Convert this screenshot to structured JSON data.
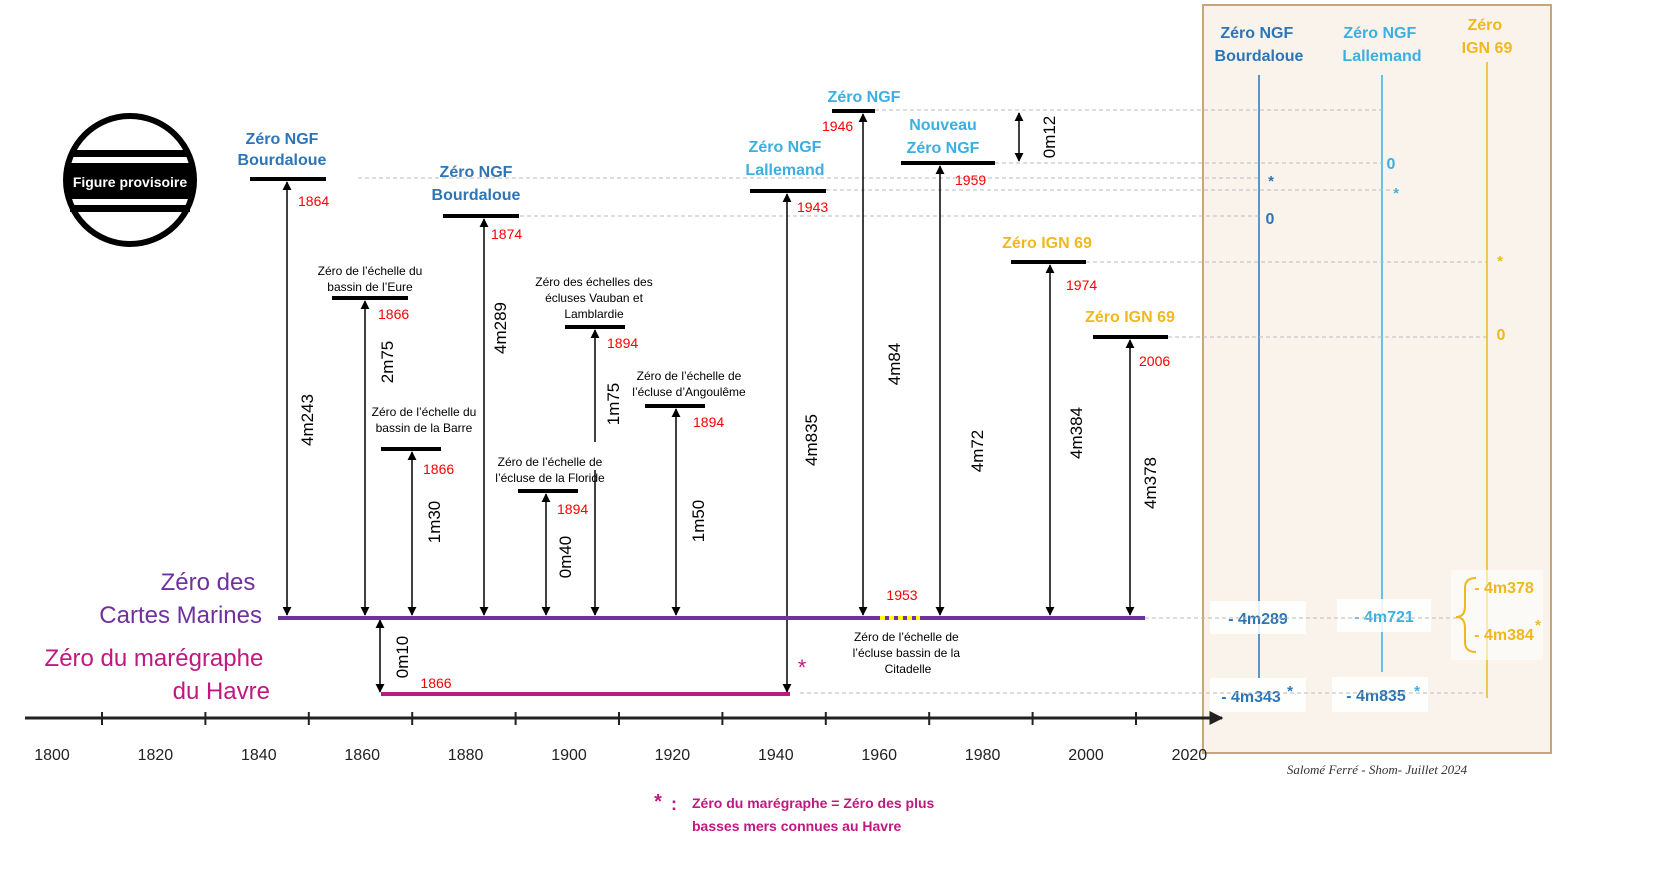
{
  "colors": {
    "ngf_bourdaloue": "#2e75b6",
    "ngf_lallemand": "#3bb0e0",
    "ign69": "#f0b81e",
    "year_red": "#ff0000",
    "cartes_marines": "#7030a0",
    "maregraphe": "#c0187f",
    "panel_bg": "#f9f3ec",
    "panel_border": "#c9a57a"
  },
  "badge": {
    "label": "Figure provisoire"
  },
  "axis": {
    "ticks": [
      "1800",
      "1820",
      "1840",
      "1860",
      "1880",
      "1900",
      "1920",
      "1940",
      "1960",
      "1980",
      "2000",
      "2020"
    ]
  },
  "zeros": [
    {
      "id": "ngf-bourdaloue-1864",
      "title_lines": [
        "Zéro NGF",
        "Bourdaloue"
      ],
      "year": "1864",
      "height": "4m243",
      "color": "blue"
    },
    {
      "id": "eure-1866",
      "title_lines": [
        "Zéro de l’échelle du",
        "bassin de l’Eure"
      ],
      "year": "1866",
      "height": "2m75",
      "color": "black"
    },
    {
      "id": "barre-1866",
      "title_lines": [
        "Zéro de l’échelle du",
        "bassin de la Barre"
      ],
      "year": "1866",
      "height": "1m30",
      "color": "black"
    },
    {
      "id": "ngf-bourdaloue-1874",
      "title_lines": [
        "Zéro NGF",
        "Bourdaloue"
      ],
      "year": "1874",
      "height": "4m289",
      "color": "blue"
    },
    {
      "id": "floride-1894",
      "title_lines": [
        "Zéro de l’échelle de",
        "l’écluse de la Floride"
      ],
      "year": "1894",
      "height": "0m40",
      "color": "black"
    },
    {
      "id": "vauban-1894",
      "title_lines": [
        "Zéro des échelles des",
        "écluses Vauban et",
        "Lamblardie"
      ],
      "year": "1894",
      "height": "1m75",
      "color": "black"
    },
    {
      "id": "angouleme-1894",
      "title_lines": [
        "Zéro de l’échelle de",
        "l’écluse d’Angoulême"
      ],
      "year": "1894",
      "height": "1m50",
      "color": "black"
    },
    {
      "id": "ngf-lallemand-1943",
      "title_lines": [
        "Zéro NGF",
        "Lallemand"
      ],
      "year": "1943",
      "height": "4m835",
      "color": "cyan"
    },
    {
      "id": "ngf-1946",
      "title_lines": [
        "Zéro NGF"
      ],
      "year": "1946",
      "height": "4m84",
      "color": "cyan"
    },
    {
      "id": "nouveau-ngf-1959",
      "title_lines": [
        "Nouveau",
        "Zéro NGF"
      ],
      "year": "1959",
      "height": "4m72",
      "color": "cyan"
    },
    {
      "id": "ign69-1974",
      "title_lines": [
        "Zéro IGN 69"
      ],
      "year": "1974",
      "height": "4m384",
      "color": "gold"
    },
    {
      "id": "ign69-2006",
      "title_lines": [
        "Zéro IGN 69"
      ],
      "year": "2006",
      "height": "4m378",
      "color": "gold"
    }
  ],
  "gap_ngf": {
    "label": "0m12"
  },
  "cartes_marines": {
    "label_lines": [
      "Zéro des",
      "Cartes Marines"
    ]
  },
  "maregraphe": {
    "label_lines": [
      "Zéro du marégraphe",
      "du Havre"
    ],
    "year": "1866",
    "height": "0m10",
    "star": "*"
  },
  "citadelle": {
    "year": "1953",
    "label_lines": [
      "Zéro de l’échelle de",
      "l’écluse bassin de la",
      "Citadelle"
    ]
  },
  "panel": {
    "columns": [
      {
        "title_lines": [
          "Zéro NGF",
          "Bourdaloue"
        ],
        "zero": "0",
        "star": "*",
        "cm_value": "- 4m289",
        "mar_value": "- 4m343",
        "mar_star": "*"
      },
      {
        "title_lines": [
          "Zéro NGF",
          "Lallemand"
        ],
        "zero": "0",
        "star": "*",
        "cm_value": "- 4m721",
        "mar_value": "- 4m835",
        "mar_star": "*"
      },
      {
        "title_lines": [
          "Zéro",
          "IGN 69"
        ],
        "zero": "0",
        "star": "*",
        "cm_values": [
          "- 4m378",
          "- 4m384"
        ],
        "cm_star": "*"
      }
    ],
    "credit": "Salomé Ferré - Shom- Juillet 2024"
  },
  "footnote": {
    "star": "*",
    "colon": ":",
    "lines": [
      "Zéro du marégraphe = Zéro des plus",
      "basses mers connues au Havre"
    ]
  }
}
